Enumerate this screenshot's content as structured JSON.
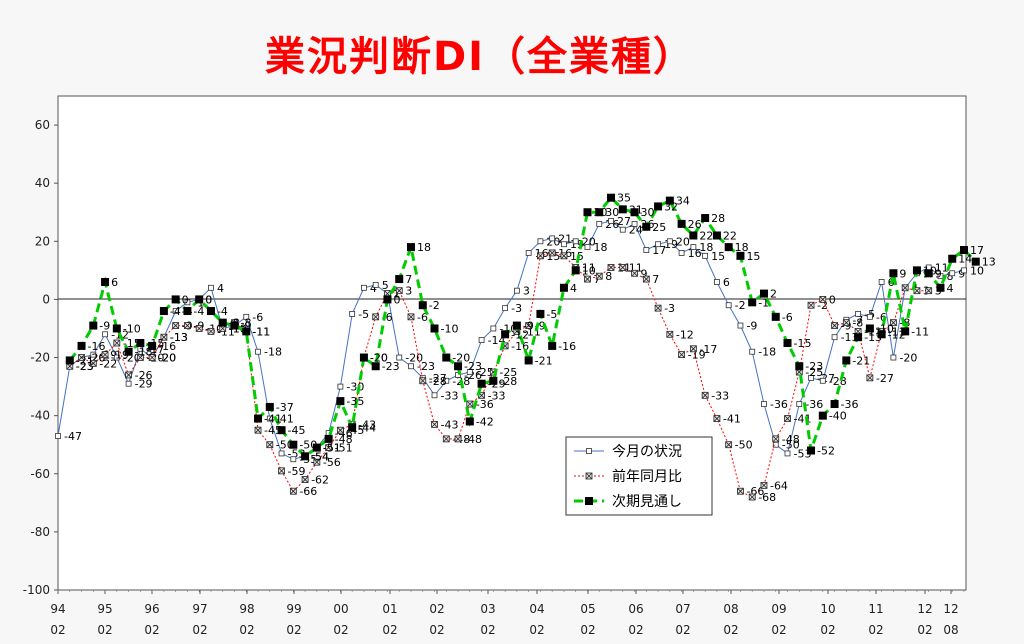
{
  "chart_data": {
    "type": "line",
    "title": "業況判断DI（全業種）",
    "xlabel": "",
    "ylabel": "",
    "ylim": [
      -100,
      70
    ],
    "yticks": [
      60,
      40,
      20,
      0,
      -20,
      -40,
      -60,
      -80,
      -100
    ],
    "grid": false,
    "x_tick_labels": [
      {
        "year": "94",
        "month": "02"
      },
      {
        "year": "95",
        "month": "02"
      },
      {
        "year": "96",
        "month": "02"
      },
      {
        "year": "97",
        "month": "02"
      },
      {
        "year": "98",
        "month": "02"
      },
      {
        "year": "99",
        "month": "02"
      },
      {
        "year": "00",
        "month": "02"
      },
      {
        "year": "01",
        "month": "02"
      },
      {
        "year": "02",
        "month": "02"
      },
      {
        "year": "03",
        "month": "02"
      },
      {
        "year": "04",
        "month": "02"
      },
      {
        "year": "05",
        "month": "02"
      },
      {
        "year": "06",
        "month": "02"
      },
      {
        "year": "07",
        "month": "02"
      },
      {
        "year": "08",
        "month": "02"
      },
      {
        "year": "09",
        "month": "02"
      },
      {
        "year": "10",
        "month": "02"
      },
      {
        "year": "11",
        "month": "02"
      },
      {
        "year": "12",
        "month": "02"
      },
      {
        "year": "12",
        "month": "08"
      }
    ],
    "legend_position": "bottom-center",
    "series": [
      {
        "name": "今月の状況",
        "color": "#4472c4",
        "style": "solid-thin",
        "marker": "open-square",
        "values": [
          -47,
          -23,
          -20,
          -19,
          -12,
          -20,
          -29,
          -17,
          -20,
          -13,
          -4,
          -1,
          0,
          4,
          -10,
          -9,
          -6,
          -18,
          -41,
          -53,
          -55,
          -54,
          -51,
          -46,
          -30,
          -5,
          4,
          5,
          2,
          -20,
          -23,
          -27,
          -33,
          -28,
          -26,
          -25,
          -14,
          -10,
          -3,
          3,
          16,
          20,
          21,
          19,
          20,
          18,
          26,
          27,
          24,
          26,
          17,
          19,
          20,
          16,
          18,
          15,
          6,
          -2,
          -9,
          -18,
          -36,
          -50,
          -53,
          -36,
          -27,
          -28,
          -13,
          -7,
          -5,
          -6,
          6,
          -20,
          4,
          9,
          11,
          8,
          9,
          10
        ]
      },
      {
        "name": "前年同月比",
        "color": "#ff0000",
        "style": "dotted",
        "marker": "x-square",
        "values": [
          null,
          -23,
          -20,
          -22,
          -19,
          -15,
          -26,
          -20,
          -20,
          -13,
          -9,
          -9,
          -10,
          -11,
          -10,
          -8,
          -11,
          -45,
          -50,
          -59,
          -66,
          -62,
          -56,
          -51,
          -45,
          -43,
          -20,
          -6,
          2,
          3,
          -6,
          -28,
          -43,
          -48,
          -48,
          -36,
          -33,
          -25,
          -16,
          -11,
          -9,
          15,
          16,
          15,
          11,
          7,
          8,
          11,
          11,
          9,
          7,
          -3,
          -12,
          -19,
          -17,
          -33,
          -41,
          -50,
          -66,
          -68,
          -64,
          -48,
          -41,
          -25,
          -2,
          0,
          -9,
          -8,
          -11,
          -27,
          -11,
          -8,
          4,
          3,
          3
        ]
      },
      {
        "name": "次期見通し",
        "color": "#00cc00",
        "style": "dashed-thick",
        "marker": "filled-square",
        "values": [
          null,
          -21,
          -16,
          -9,
          6,
          -10,
          -18,
          -15,
          -16,
          -4,
          0,
          -4,
          0,
          -4,
          -8,
          -9,
          -11,
          -41,
          -37,
          -45,
          -50,
          -54,
          -51,
          -48,
          -35,
          -44,
          -20,
          -23,
          0,
          7,
          18,
          -2,
          -10,
          -20,
          -23,
          -42,
          -29,
          -28,
          -12,
          -9,
          -21,
          -5,
          -16,
          4,
          10,
          30,
          30,
          35,
          31,
          30,
          25,
          32,
          34,
          26,
          22,
          28,
          22,
          18,
          15,
          -1,
          2,
          -6,
          -15,
          -23,
          -52,
          -40,
          -36,
          -21,
          -13,
          -10,
          -12,
          9,
          -11,
          10,
          9,
          4,
          14,
          17,
          13
        ]
      }
    ]
  }
}
